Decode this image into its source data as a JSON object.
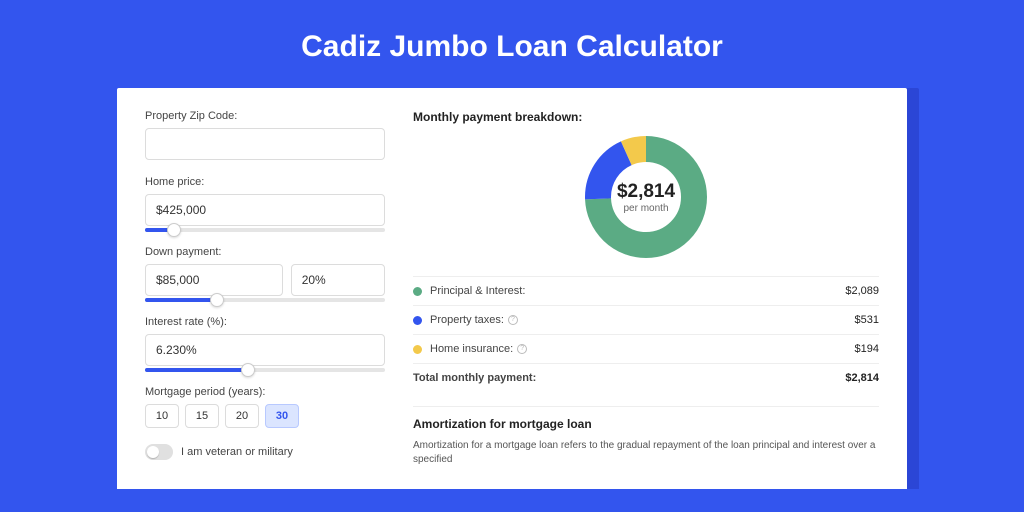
{
  "title": "Cadiz Jumbo Loan Calculator",
  "form": {
    "zip_label": "Property Zip Code:",
    "zip_value": "",
    "home_price_label": "Home price:",
    "home_price_value": "$425,000",
    "home_price_slider_pct": 12,
    "down_payment_label": "Down payment:",
    "down_payment_value": "$85,000",
    "down_payment_pct_value": "20%",
    "down_payment_slider_pct": 30,
    "interest_label": "Interest rate (%):",
    "interest_value": "6.230%",
    "interest_slider_pct": 43,
    "period_label": "Mortgage period (years):",
    "period_options": [
      "10",
      "15",
      "20",
      "30"
    ],
    "period_selected": "30",
    "veteran_label": "I am veteran or military"
  },
  "breakdown": {
    "title": "Monthly payment breakdown:",
    "donut": {
      "amount": "$2,814",
      "sub": "per month",
      "slices": [
        {
          "value": 2089,
          "color": "#5bab84"
        },
        {
          "value": 531,
          "color": "#3355ee"
        },
        {
          "value": 194,
          "color": "#f3c94b"
        }
      ],
      "radius": 48,
      "stroke": 26
    },
    "rows": [
      {
        "label": "Principal & Interest:",
        "value": "$2,089",
        "color": "#5bab84",
        "info": false
      },
      {
        "label": "Property taxes:",
        "value": "$531",
        "color": "#3355ee",
        "info": true
      },
      {
        "label": "Home insurance:",
        "value": "$194",
        "color": "#f3c94b",
        "info": true
      }
    ],
    "total_label": "Total monthly payment:",
    "total_value": "$2,814"
  },
  "amort": {
    "title": "Amortization for mortgage loan",
    "text": "Amortization for a mortgage loan refers to the gradual repayment of the loan principal and interest over a specified"
  }
}
